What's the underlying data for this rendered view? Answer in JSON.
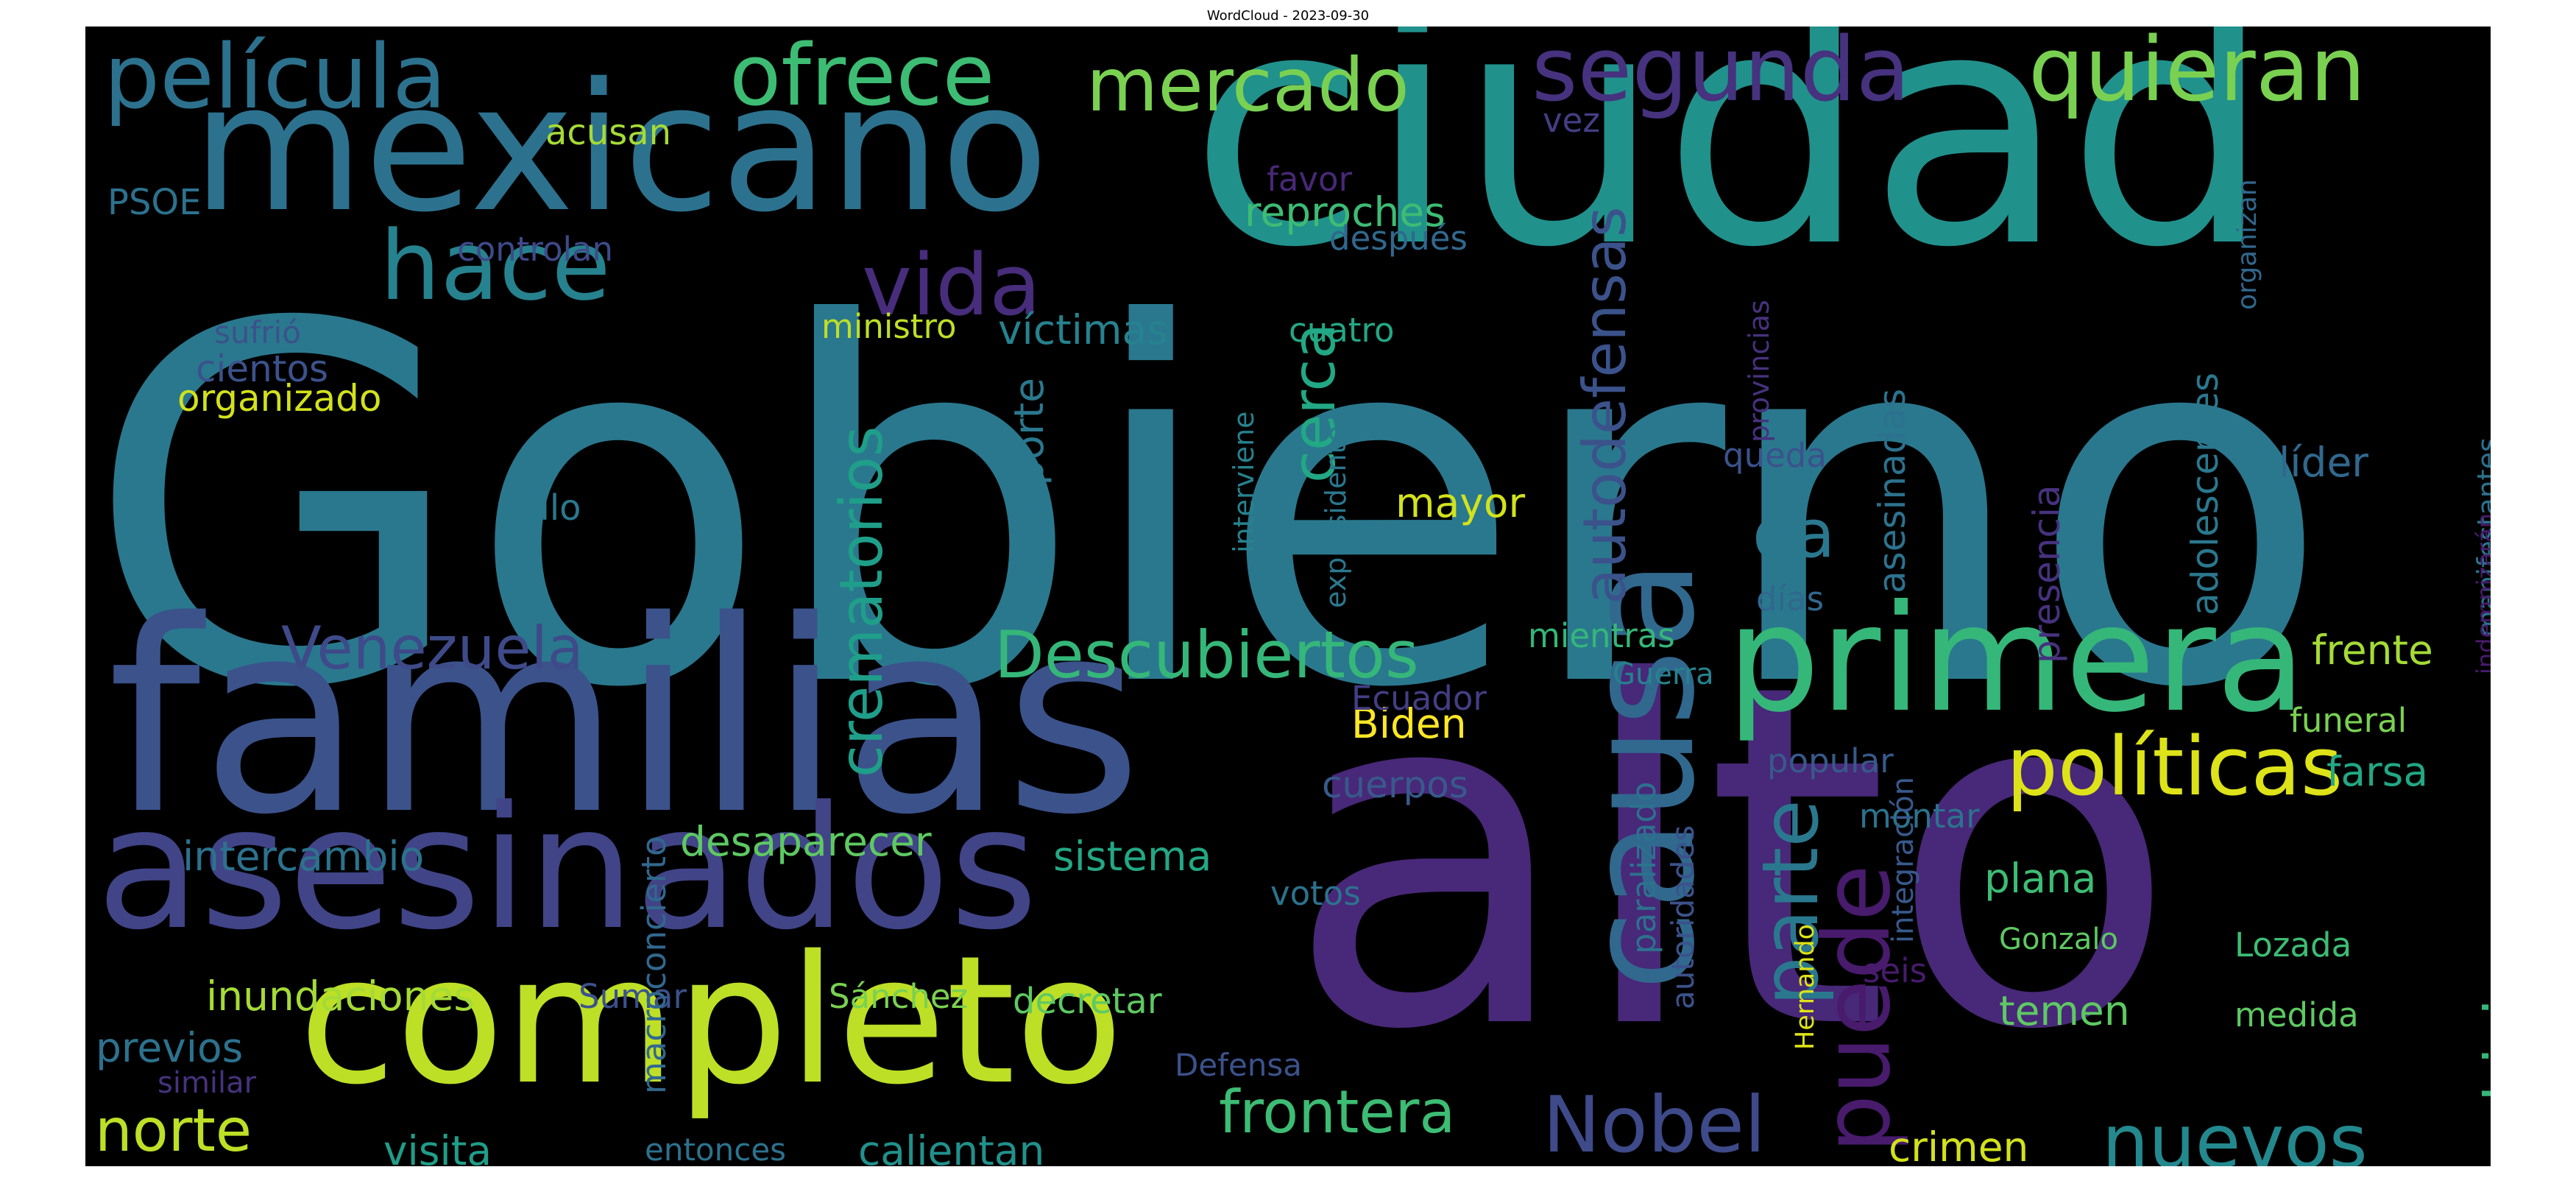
{
  "title": "WordCloud - 2023-09-30",
  "cloud": {
    "background": "#000000",
    "palette": "viridis",
    "words": [
      {
        "text": "Gobierno",
        "color": "#2a788e"
      },
      {
        "text": "ciudad",
        "color": "#21918c"
      },
      {
        "text": "alto",
        "color": "#482878"
      },
      {
        "text": "familias",
        "color": "#3b528b"
      },
      {
        "text": "mexicano",
        "color": "#2c728e"
      },
      {
        "text": "completo",
        "color": "#bddf26"
      },
      {
        "text": "asesinados",
        "color": "#414487"
      },
      {
        "text": "primera",
        "color": "#35b779"
      },
      {
        "text": "causa",
        "color": "#31688e"
      },
      {
        "text": "políticas",
        "color": "#dde318"
      },
      {
        "text": "película",
        "color": "#2c728e"
      },
      {
        "text": "segunda",
        "color": "#46327e"
      },
      {
        "text": "quieran",
        "color": "#7ad151"
      },
      {
        "text": "ofrece",
        "color": "#3dbc74"
      },
      {
        "text": "mercado",
        "color": "#7ad151"
      },
      {
        "text": "hace",
        "color": "#26828e"
      },
      {
        "text": "puede",
        "color": "#481b6d"
      },
      {
        "text": "nuevos",
        "color": "#23898e"
      },
      {
        "text": "Nobel",
        "color": "#3e4a89"
      },
      {
        "text": "parte",
        "color": "#2a788e"
      },
      {
        "text": "vida",
        "color": "#472d7b"
      },
      {
        "text": "da",
        "color": "#2a788e"
      },
      {
        "text": "Descubiertos",
        "color": "#35b779"
      },
      {
        "text": "frontera",
        "color": "#3dbc74"
      },
      {
        "text": "crematorios",
        "color": "#1f9e89"
      },
      {
        "text": "autodefensas",
        "color": "#3b528b"
      },
      {
        "text": "Venezuela",
        "color": "#3e4a89"
      },
      {
        "text": "hicieron",
        "color": "#35b779"
      },
      {
        "text": "norte",
        "color": "#bddf26"
      },
      {
        "text": "inundaciones",
        "color": "#a5db36"
      },
      {
        "text": "cerca",
        "color": "#22a884"
      },
      {
        "text": "desaparecer",
        "color": "#5ec962"
      },
      {
        "text": "intercambio",
        "color": "#2c728e"
      },
      {
        "text": "reproches",
        "color": "#3dbc74"
      },
      {
        "text": "transporte",
        "color": "#2a788e"
      },
      {
        "text": "víctimas",
        "color": "#26828e"
      },
      {
        "text": "mayor",
        "color": "#d2e21b"
      },
      {
        "text": "Biden",
        "color": "#fde725"
      },
      {
        "text": "sistema",
        "color": "#22a884"
      },
      {
        "text": "calientan",
        "color": "#21918c"
      },
      {
        "text": "visita",
        "color": "#1f9e89"
      },
      {
        "text": "plana",
        "color": "#3dbc74"
      },
      {
        "text": "crimen",
        "color": "#d2e21b"
      },
      {
        "text": "temen",
        "color": "#5ec962"
      },
      {
        "text": "Lozada",
        "color": "#3dbc74"
      },
      {
        "text": "medida",
        "color": "#5ec962"
      },
      {
        "text": "frente",
        "color": "#a5db36"
      },
      {
        "text": "funeral",
        "color": "#7ad151"
      },
      {
        "text": "farsa",
        "color": "#22a884"
      },
      {
        "text": "líder",
        "color": "#31688e"
      },
      {
        "text": "presencia",
        "color": "#46327e"
      },
      {
        "text": "adolescentes",
        "color": "#2a788e"
      },
      {
        "text": "asesinadas",
        "color": "#2c728e"
      },
      {
        "text": "manifestantes",
        "color": "#2c728e"
      },
      {
        "text": "indemnizarán",
        "color": "#481b6d"
      },
      {
        "text": "organizan",
        "color": "#31688e"
      },
      {
        "text": "provincias",
        "color": "#46327e"
      },
      {
        "text": "acusan",
        "color": "#a5db36"
      },
      {
        "text": "organizado",
        "color": "#d2e21b"
      },
      {
        "text": "cientos",
        "color": "#3b528b"
      },
      {
        "text": "sufrió",
        "color": "#3b528b"
      },
      {
        "text": "controlan",
        "color": "#3e4a89"
      },
      {
        "text": "PSOE",
        "color": "#2c728e"
      },
      {
        "text": "favor",
        "color": "#482878"
      },
      {
        "text": "después",
        "color": "#31688e"
      },
      {
        "text": "vez",
        "color": "#433e85"
      },
      {
        "text": "ministro",
        "color": "#bddf26"
      },
      {
        "text": "cuatro",
        "color": "#22a884"
      },
      {
        "text": "interviene",
        "color": "#26828e"
      },
      {
        "text": "expresidente",
        "color": "#2a788e"
      },
      {
        "text": "mientras",
        "color": "#35b779"
      },
      {
        "text": "días",
        "color": "#31688e"
      },
      {
        "text": "queda",
        "color": "#3b528b"
      },
      {
        "text": "nulo",
        "color": "#2a788e"
      },
      {
        "text": "paralizado",
        "color": "#2c728e"
      },
      {
        "text": "autoridades",
        "color": "#3b528b"
      },
      {
        "text": "cuerpos",
        "color": "#38598c"
      },
      {
        "text": "Ecuador",
        "color": "#433e85"
      },
      {
        "text": "votos",
        "color": "#2c728e"
      },
      {
        "text": "popular",
        "color": "#38598c"
      },
      {
        "text": "montar",
        "color": "#2c728e"
      },
      {
        "text": "Guerra",
        "color": "#26828e"
      },
      {
        "text": "seis",
        "color": "#481b6d"
      },
      {
        "text": "Gonzalo",
        "color": "#5ec962"
      },
      {
        "text": "Hernando",
        "color": "#dde318"
      },
      {
        "text": "integración",
        "color": "#38598c"
      },
      {
        "text": "Sánchez",
        "color": "#7ad151"
      },
      {
        "text": "Sumar",
        "color": "#3b528b"
      },
      {
        "text": "decretar",
        "color": "#5ec962"
      },
      {
        "text": "previos",
        "color": "#2c728e"
      },
      {
        "text": "similar",
        "color": "#46327e"
      },
      {
        "text": "macroconcierto",
        "color": "#31688e"
      },
      {
        "text": "entonces",
        "color": "#2c728e"
      },
      {
        "text": "Defensa",
        "color": "#3b528b"
      }
    ]
  }
}
